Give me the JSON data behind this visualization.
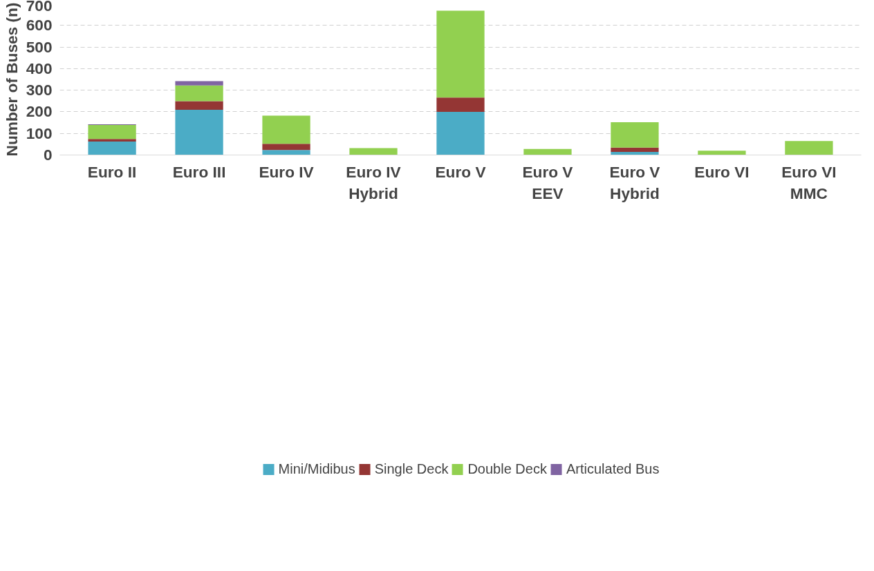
{
  "chart_data": {
    "type": "bar",
    "stacked": true,
    "ylabel": "Number of Buses (n)",
    "categories": [
      "Euro II",
      "Euro III",
      "Euro IV",
      "Euro IV\nHybrid",
      "Euro V",
      "Euro V\nEEV",
      "Euro V\nHybrid",
      "Euro VI",
      "Euro VI\nMMC"
    ],
    "series": [
      {
        "name": "Mini/Midibus",
        "color": "#4bacc6",
        "values": [
          62,
          209,
          23,
          0,
          200,
          0,
          14,
          0,
          0
        ]
      },
      {
        "name": "Single Deck",
        "color": "#943634",
        "values": [
          12,
          40,
          29,
          0,
          66,
          0,
          20,
          0,
          0
        ]
      },
      {
        "name": "Double Deck",
        "color": "#92d050",
        "values": [
          65,
          73,
          130,
          32,
          402,
          28,
          118,
          20,
          65
        ]
      },
      {
        "name": "Articulated Bus",
        "color": "#8064a2",
        "values": [
          3,
          20,
          0,
          0,
          0,
          0,
          0,
          0,
          0
        ]
      }
    ],
    "ylim": [
      0,
      700
    ],
    "yticks": [
      0,
      100,
      200,
      300,
      400,
      500,
      600,
      700
    ],
    "grid": "y",
    "legend": "bottom"
  }
}
